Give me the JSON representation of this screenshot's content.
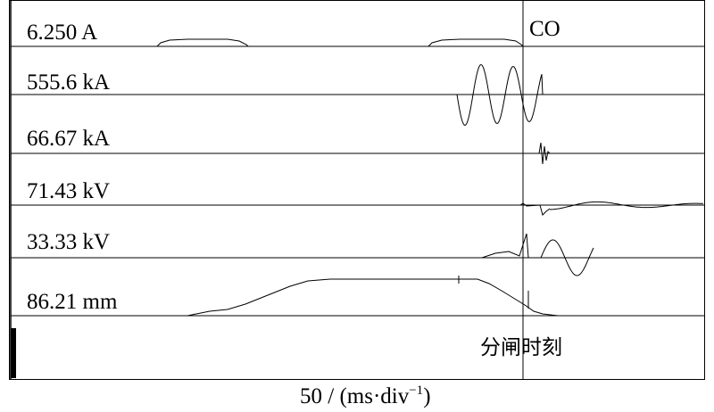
{
  "chart_data": {
    "type": "line",
    "title": "",
    "xlabel": "50 / (ms·div",
    "xlabel_sup": "−1",
    "xlabel_close": ")",
    "marker_label": "CO",
    "event_label": "分闸时刻",
    "grid": false,
    "channels": [
      {
        "label": "6.250 A"
      },
      {
        "label": "555.6 kA"
      },
      {
        "label": "66.67 kA"
      },
      {
        "label": "71.43 kV"
      },
      {
        "label": "33.33 kV"
      },
      {
        "label": "86.21 mm"
      }
    ],
    "colors": {
      "trace": "#000000",
      "background": "#ffffff"
    }
  }
}
